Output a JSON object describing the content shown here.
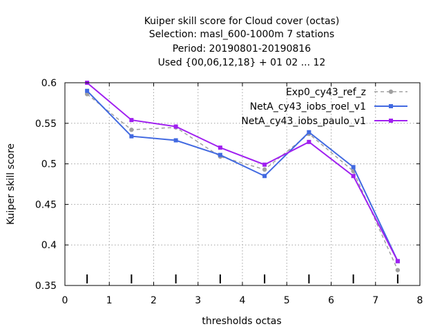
{
  "chart_data": {
    "type": "line",
    "title_lines": [
      "Kuiper skill score  for Cloud cover (octas)",
      "Selection: masl_600-1000m      7 stations",
      "Period: 20190801-20190816",
      "Used {00,06,12,18} + 01 02 ... 12"
    ],
    "xlabel": "thresholds octas",
    "ylabel": "Kuiper skill score",
    "xlim": [
      0,
      8
    ],
    "ylim": [
      0.35,
      0.6
    ],
    "x_ticks": [
      "0",
      "1",
      "2",
      "3",
      "4",
      "5",
      "6",
      "7",
      "8"
    ],
    "y_ticks": [
      "0.35",
      "0.4",
      "0.45",
      "0.5",
      "0.55",
      "0.6"
    ],
    "grid": true,
    "legend_position": "top-right",
    "x": [
      0.5,
      1.5,
      2.5,
      3.5,
      4.5,
      5.5,
      6.5,
      7.5
    ],
    "series": [
      {
        "name": "Exp0_cy43_ref_z",
        "color": "#a0a0a0",
        "dashed": true,
        "marker": "circle",
        "values": [
          0.586,
          0.542,
          0.545,
          0.509,
          0.493,
          0.537,
          0.491,
          0.369
        ]
      },
      {
        "name": "NetA_cy43_iobs_roel_v1",
        "color": "#4169e1",
        "dashed": false,
        "marker": "square",
        "values": [
          0.59,
          0.534,
          0.529,
          0.511,
          0.485,
          0.539,
          0.496,
          0.38
        ]
      },
      {
        "name": "NetA_cy43_iobs_paulo_v1",
        "color": "#a020f0",
        "dashed": false,
        "marker": "square",
        "values": [
          0.6,
          0.554,
          0.546,
          0.52,
          0.499,
          0.527,
          0.485,
          0.38
        ]
      }
    ]
  }
}
